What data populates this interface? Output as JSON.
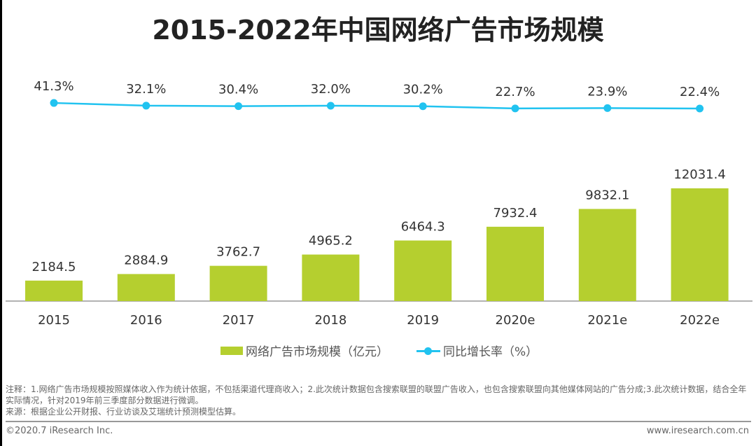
{
  "chart_data": {
    "type": "bar",
    "title": "2015-2022年中国网络广告市场规模",
    "categories": [
      "2015",
      "2016",
      "2017",
      "2018",
      "2019",
      "2020e",
      "2021e",
      "2022e"
    ],
    "series": [
      {
        "name": "网络广告市场规模（亿元）",
        "type": "bar",
        "color": "#b5cf2f",
        "values": [
          2184.5,
          2884.9,
          3762.7,
          4965.2,
          6464.3,
          7932.4,
          9832.1,
          12031.4
        ],
        "labels": [
          "2184.5",
          "2884.9",
          "3762.7",
          "4965.2",
          "6464.3",
          "7932.4",
          "9832.1",
          "12031.4"
        ]
      },
      {
        "name": "同比增长率（%）",
        "type": "line",
        "color": "#21c3f0",
        "values": [
          41.3,
          32.1,
          30.4,
          32.0,
          30.2,
          22.7,
          23.9,
          22.4
        ],
        "labels": [
          "41.3%",
          "32.1%",
          "30.4%",
          "32.0%",
          "30.2%",
          "22.7%",
          "23.9%",
          "22.4%"
        ]
      }
    ],
    "legend_placement": "bottom",
    "grid": false
  },
  "footer": {
    "note": "注释：1.网络广告市场规模按照媒体收入作为统计依据，不包括渠道代理商收入；2.此次统计数据包含搜索联盟的联盟广告收入，也包含搜索联盟向其他媒体网站的广告分成;3.此次统计数据，结合全年实际情况，针对2019年前三季度部分数据进行微调。",
    "source": "来源：根据企业公开财报、行业访谈及艾瑞统计预测模型估算。",
    "copyright": "©2020.7 iResearch Inc.",
    "website": "www.iresearch.com.cn"
  }
}
